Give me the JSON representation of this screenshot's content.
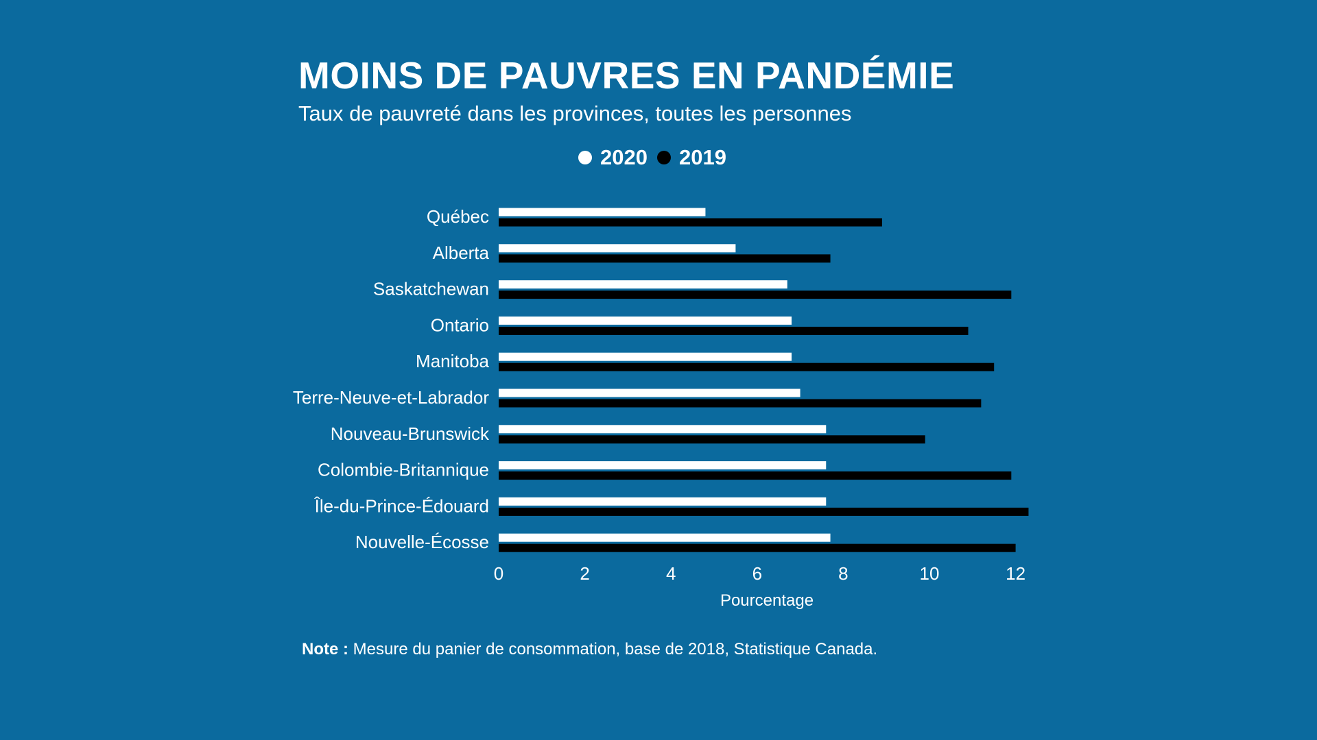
{
  "title": "MOINS DE PAUVRES EN PANDÉMIE",
  "subtitle": "Taux de pauvreté dans les provinces, toutes les personnes",
  "note": {
    "label": "Note :",
    "text": "Mesure du panier de consommation, base de 2018, Statistique Canada."
  },
  "colors": {
    "background": "#0b6a9e",
    "series_2020": "#ffffff",
    "series_2019": "#000000"
  },
  "chart_data": {
    "type": "bar",
    "orientation": "horizontal",
    "title": "MOINS DE PAUVRES EN PANDÉMIE",
    "subtitle": "Taux de pauvreté dans les provinces, toutes les personnes",
    "xlabel": "Pourcentage",
    "ylabel": "",
    "xlim": [
      0,
      12.5
    ],
    "xticks": [
      0,
      2,
      4,
      6,
      8,
      10,
      12
    ],
    "grid": false,
    "legend_position": "top-center",
    "categories": [
      "Québec",
      "Alberta",
      "Saskatchewan",
      "Ontario",
      "Manitoba",
      "Terre-Neuve-et-Labrador",
      "Nouveau-Brunswick",
      "Colombie-Britannique",
      "Île-du-Prince-Édouard",
      "Nouvelle-Écosse"
    ],
    "series": [
      {
        "name": "2020",
        "color": "#ffffff",
        "values": [
          4.8,
          5.5,
          6.7,
          6.8,
          6.8,
          7.0,
          7.6,
          7.6,
          7.6,
          7.7
        ]
      },
      {
        "name": "2019",
        "color": "#000000",
        "values": [
          8.9,
          7.7,
          11.9,
          10.9,
          11.5,
          11.2,
          9.9,
          11.9,
          12.3,
          12.0
        ]
      }
    ]
  }
}
